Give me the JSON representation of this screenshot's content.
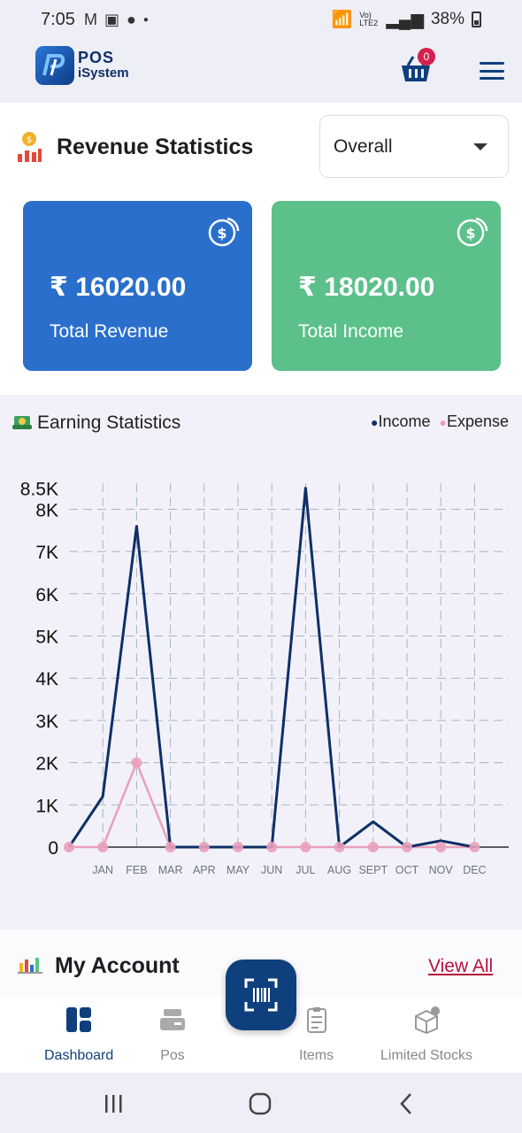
{
  "status_bar": {
    "time": "7:05",
    "battery": "38%",
    "network_label": "Vo) LTE2"
  },
  "app": {
    "logo_line1": "POS",
    "logo_line2": "iSystem",
    "cart_count": "0"
  },
  "revenue": {
    "title": "Revenue Statistics",
    "period_selected": "Overall",
    "cards": [
      {
        "amount": "₹ 16020.00",
        "label": "Total Revenue",
        "color": "#2a6fcc"
      },
      {
        "amount": "₹ 18020.00",
        "label": "Total Income",
        "color": "#5bc08a"
      }
    ]
  },
  "earning": {
    "title": "Earning Statistics",
    "legend_income": "Income",
    "legend_expense": "Expense"
  },
  "chart_data": {
    "type": "line",
    "title": "Earning Statistics",
    "x": [
      "",
      "JAN",
      "FEB",
      "MAR",
      "APR",
      "MAY",
      "JUN",
      "JUL",
      "AUG",
      "SEPT",
      "OCT",
      "NOV",
      "DEC"
    ],
    "series": [
      {
        "name": "Income",
        "color": "#0f2f66",
        "values": [
          0,
          1200,
          7600,
          0,
          0,
          0,
          0,
          8500,
          0,
          600,
          0,
          150,
          0
        ]
      },
      {
        "name": "Expense",
        "color": "#e9a0ba",
        "values": [
          0,
          0,
          2000,
          0,
          0,
          0,
          0,
          0,
          0,
          0,
          0,
          0,
          0
        ]
      }
    ],
    "y_ticks": [
      "0",
      "1K",
      "2K",
      "3K",
      "4K",
      "5K",
      "6K",
      "7K",
      "8K",
      "8.5K"
    ],
    "y_tick_values": [
      0,
      1000,
      2000,
      3000,
      4000,
      5000,
      6000,
      7000,
      8000,
      8500
    ],
    "ylim": [
      0,
      8500
    ],
    "grid": true,
    "legend": "top-right"
  },
  "account": {
    "title": "My Account",
    "view_all": "View All"
  },
  "bottom_nav": {
    "items": [
      {
        "label": "Dashboard",
        "icon": "dashboard-icon"
      },
      {
        "label": "Pos",
        "icon": "pos-icon"
      },
      {
        "label": "Items",
        "icon": "items-icon"
      },
      {
        "label": "Limited Stocks",
        "icon": "limited-stocks-icon"
      }
    ],
    "scan_icon": "barcode-scan-icon"
  }
}
